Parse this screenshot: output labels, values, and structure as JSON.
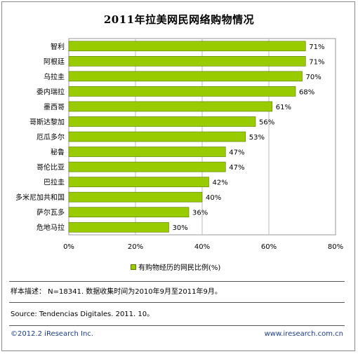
{
  "chart_data": {
    "type": "bar",
    "orientation": "horizontal",
    "title": "2011年拉美网民网络购物情况",
    "categories": [
      "智利",
      "阿根廷",
      "乌拉圭",
      "委内瑞拉",
      "墨西哥",
      "哥斯达黎加",
      "厄瓜多尔",
      "秘鲁",
      "哥伦比亚",
      "巴拉圭",
      "多米尼加共和国",
      "萨尔瓦多",
      "危地马拉"
    ],
    "series": [
      {
        "name": "有购物经历的网民比例(%)",
        "values": [
          71,
          71,
          70,
          68,
          61,
          56,
          53,
          47,
          47,
          42,
          40,
          36,
          30
        ],
        "labels": [
          "71%",
          "71%",
          "70%",
          "68%",
          "61%",
          "56%",
          "53%",
          "47%",
          "47%",
          "42%",
          "40%",
          "36%",
          "30%"
        ]
      }
    ],
    "xlim": [
      0,
      80
    ],
    "xticks": [
      0,
      20,
      40,
      60,
      80
    ],
    "xtick_labels": [
      "0%",
      "20%",
      "40%",
      "60%",
      "80%"
    ],
    "grid": "vertical",
    "legend_position": "bottom",
    "bar_color": "#99cc00",
    "bar_edge_color": "#5a7a00"
  },
  "notes": {
    "sample": "样本描述： N=18341. 数据收集时间为2010年9月至2011年9月。",
    "source": "Source: Tendencias Digitales. 2011. 10。"
  },
  "footer": {
    "copyright": "©2012.2 iResearch Inc.",
    "website": "www.iresearch.com.cn"
  }
}
